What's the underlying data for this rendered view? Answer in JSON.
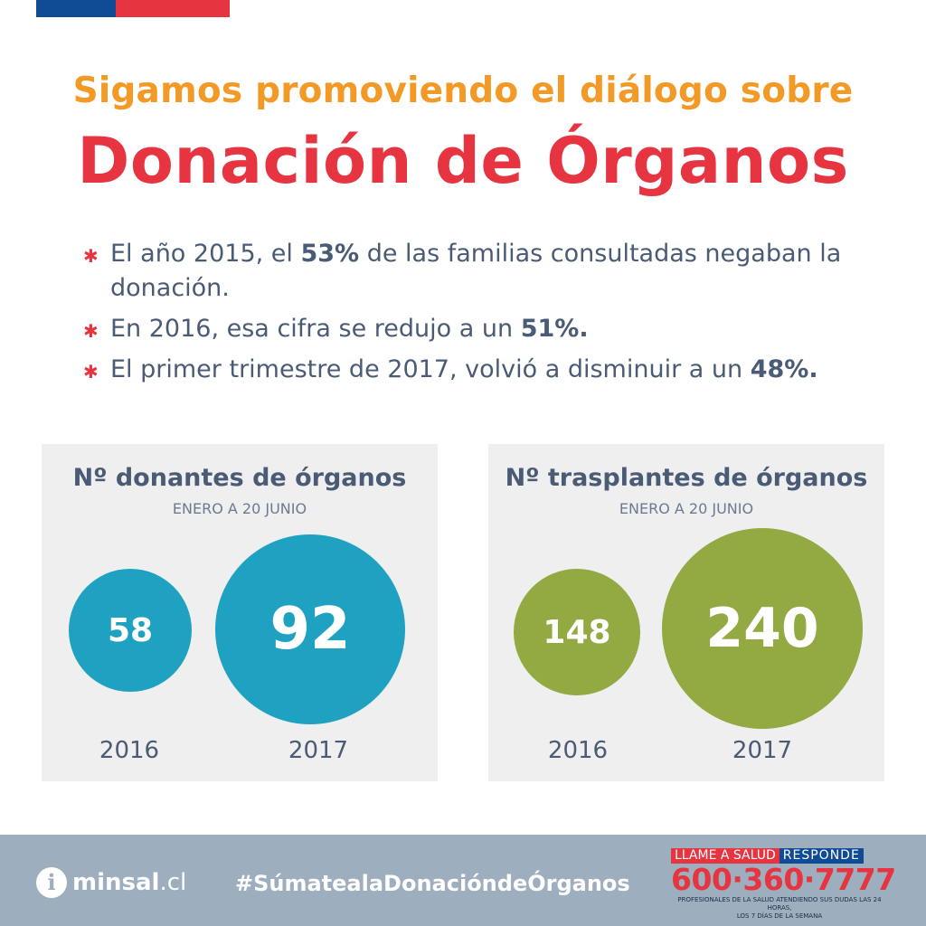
{
  "header": {
    "subtitle": "Sigamos promoviendo el diálogo sobre",
    "title": "Donación de Órganos"
  },
  "bullets": [
    {
      "before": "El año 2015, el ",
      "highlight": "53%",
      "after": " de las familias consultadas negaban la donación."
    },
    {
      "before": "En 2016, esa cifra se redujo a un ",
      "highlight": "51%.",
      "after": ""
    },
    {
      "before": "El primer trimestre de 2017, volvió a disminuir a un ",
      "highlight": "48%.",
      "after": ""
    }
  ],
  "panels": [
    {
      "title": "Nº donantes de órganos",
      "subtitle": "ENERO A 20 JUNIO",
      "values": [
        {
          "year": "2016",
          "value": "58"
        },
        {
          "year": "2017",
          "value": "92"
        }
      ],
      "color": "#1fa2c1"
    },
    {
      "title": "Nº trasplantes de órganos",
      "subtitle": "ENERO A 20 JUNIO",
      "values": [
        {
          "year": "2016",
          "value": "148"
        },
        {
          "year": "2017",
          "value": "240"
        }
      ],
      "color": "#93a942"
    }
  ],
  "footer": {
    "brand_bold": "minsal",
    "brand_rest": ".cl",
    "hashtag": "#SúmatealaDonacióndeÓrganos",
    "call_label_red": "LLAME A SALUD",
    "call_label_blue": "RESPONDE",
    "phone": "600·360·7777",
    "note_line1": "PROFESIONALES DE LA SALUD ATENDIENDO SUS DUDAS LAS 24 HORAS,",
    "note_line2": "LOS 7 DÍAS DE LA SEMANA"
  },
  "colors": {
    "accent_orange": "#f29a25",
    "accent_red": "#e63440",
    "text_navy": "#4a5b75",
    "teal": "#1fa2c1",
    "olive": "#93a942",
    "footer_bg": "#9daebf",
    "flag_blue": "#0f4c95"
  }
}
